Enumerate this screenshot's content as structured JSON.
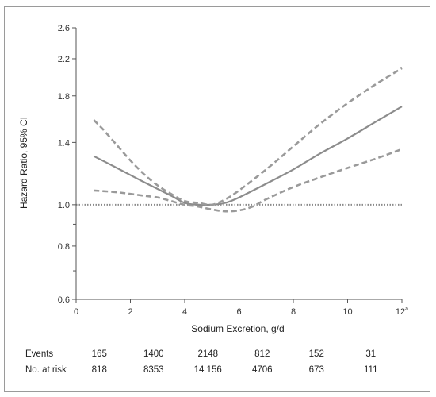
{
  "chart_data": {
    "type": "line",
    "title": "",
    "xlabel": "Sodium Excretion, g/d",
    "ylabel": "Hazard Ratio, 95% CI",
    "xlim": [
      0,
      12
    ],
    "ylim": [
      0.6,
      2.6
    ],
    "y_scale": "log",
    "x_ticks": [
      {
        "value": 0,
        "label": "0"
      },
      {
        "value": 2,
        "label": "2"
      },
      {
        "value": 4,
        "label": "4"
      },
      {
        "value": 6,
        "label": "6"
      },
      {
        "value": 8,
        "label": "8"
      },
      {
        "value": 10,
        "label": "10"
      },
      {
        "value": 12,
        "label": "12",
        "superscript": "a"
      }
    ],
    "y_ticks": [
      {
        "value": 0.6,
        "label": "0.6"
      },
      {
        "value": 0.8,
        "label": "0.8"
      },
      {
        "value": 1.0,
        "label": "1.0"
      },
      {
        "value": 1.4,
        "label": "1.4"
      },
      {
        "value": 1.8,
        "label": "1.8"
      },
      {
        "value": 2.2,
        "label": "2.2"
      },
      {
        "value": 2.6,
        "label": "2.6"
      }
    ],
    "y_minor_ticks": [
      0.7,
      0.9
    ],
    "reference_line": {
      "y": 1.0,
      "style": "dotted"
    },
    "series": [
      {
        "role": "estimate",
        "style": "solid",
        "color": "#8c8c8c",
        "x": [
          0.65,
          1.5,
          2.5,
          3.5,
          4.0,
          4.5,
          5.0,
          5.5,
          6.0,
          7.0,
          8.0,
          9.0,
          10.0,
          11.0,
          12.0
        ],
        "y": [
          1.3,
          1.22,
          1.13,
          1.05,
          1.01,
          1.0,
          1.0,
          1.01,
          1.04,
          1.12,
          1.21,
          1.32,
          1.43,
          1.56,
          1.7
        ]
      },
      {
        "role": "upper_ci",
        "style": "dashed",
        "color": "#9a9a9a",
        "x": [
          0.65,
          1.0,
          1.5,
          2.0,
          2.5,
          3.0,
          3.5,
          4.0,
          4.5,
          5.0,
          5.5,
          6.0,
          7.0,
          8.0,
          9.0,
          10.0,
          11.0,
          12.0
        ],
        "y": [
          1.58,
          1.5,
          1.38,
          1.27,
          1.18,
          1.11,
          1.06,
          1.02,
          1.01,
          1.0,
          1.03,
          1.08,
          1.21,
          1.37,
          1.55,
          1.73,
          1.91,
          2.09
        ]
      },
      {
        "role": "lower_ci",
        "style": "dashed",
        "color": "#9a9a9a",
        "x": [
          0.65,
          1.5,
          2.5,
          3.0,
          3.5,
          4.0,
          4.5,
          5.0,
          5.5,
          6.0,
          6.5,
          7.0,
          8.0,
          9.0,
          10.0,
          11.0,
          12.0
        ],
        "y": [
          1.08,
          1.07,
          1.05,
          1.04,
          1.02,
          1.0,
          0.99,
          0.975,
          0.965,
          0.97,
          0.99,
          1.03,
          1.1,
          1.16,
          1.22,
          1.28,
          1.35
        ]
      }
    ]
  },
  "risk_table": {
    "events_label": "Events",
    "at_risk_label": "No. at risk",
    "columns": [
      {
        "x": 1.0,
        "events": "165",
        "at_risk": "818"
      },
      {
        "x": 3.0,
        "events": "1400",
        "at_risk": "8353"
      },
      {
        "x": 5.0,
        "events": "2148",
        "at_risk": "14 156"
      },
      {
        "x": 7.0,
        "events": "812",
        "at_risk": "4706"
      },
      {
        "x": 9.0,
        "events": "152",
        "at_risk": "673"
      },
      {
        "x": 11.0,
        "events": "31",
        "at_risk": "111"
      }
    ]
  },
  "colors": {
    "curve": "#8c8c8c",
    "ci": "#9a9a9a",
    "reference": "#8a8a8a",
    "axis": "#555555",
    "frame": "#9a9a9a"
  }
}
